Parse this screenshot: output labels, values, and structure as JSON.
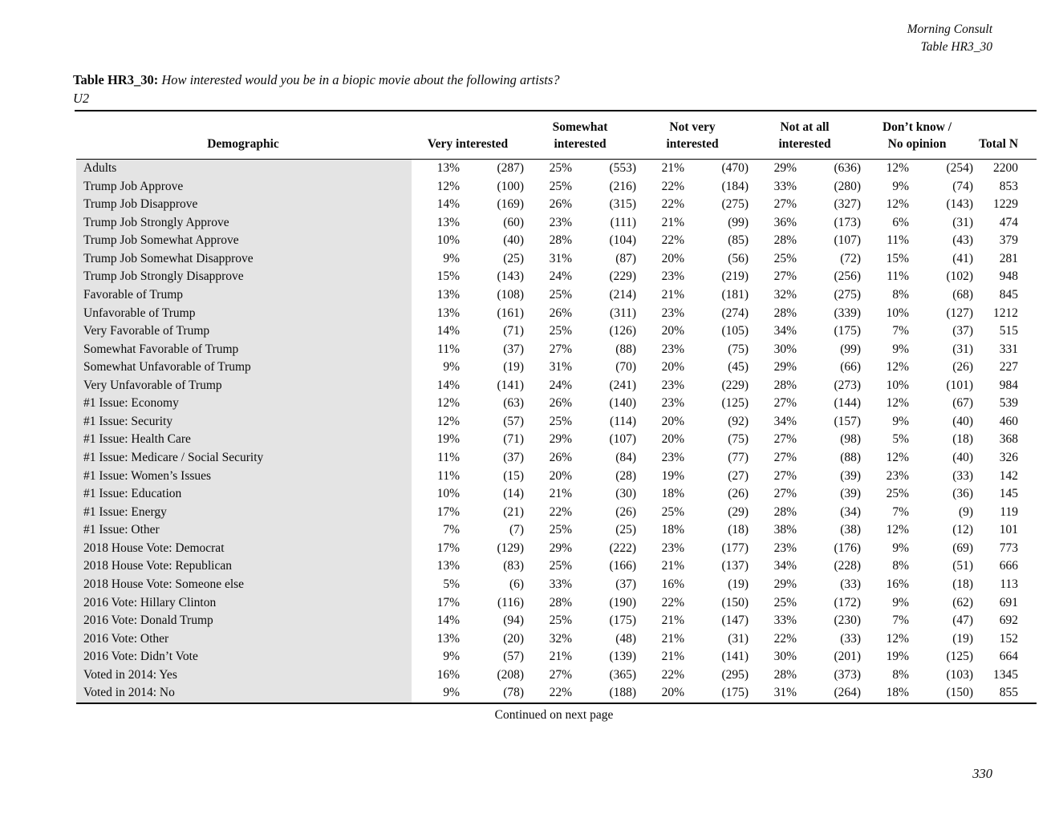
{
  "header": {
    "brand": "Morning Consult",
    "table_ref": "Table HR3_30"
  },
  "title": {
    "label": "Table HR3_30:",
    "question": "How interested would you be in a biopic movie about the following artists?",
    "subject": "U2"
  },
  "colors": {
    "demographic_shading": "#e4e4e4",
    "rule_color": "#000000",
    "text_color": "#0b0b0b",
    "page_background": "#ffffff"
  },
  "table": {
    "columns": [
      {
        "line1": "",
        "line2": "Demographic"
      },
      {
        "line1": "",
        "line2": "Very interested"
      },
      {
        "line1": "Somewhat",
        "line2": "interested"
      },
      {
        "line1": "Not very",
        "line2": "interested"
      },
      {
        "line1": "Not at all",
        "line2": "interested"
      },
      {
        "line1": "Don’t know /",
        "line2": "No opinion"
      },
      {
        "line1": "",
        "line2": "Total N"
      }
    ],
    "rows": [
      {
        "label": "Adults",
        "cells": [
          "13%",
          "(287)",
          "25%",
          "(553)",
          "21%",
          "(470)",
          "29%",
          "(636)",
          "12%",
          "(254)",
          "2200"
        ]
      },
      {
        "label": "Trump Job Approve",
        "cells": [
          "12%",
          "(100)",
          "25%",
          "(216)",
          "22%",
          "(184)",
          "33%",
          "(280)",
          "9%",
          "(74)",
          "853"
        ]
      },
      {
        "label": "Trump Job Disapprove",
        "cells": [
          "14%",
          "(169)",
          "26%",
          "(315)",
          "22%",
          "(275)",
          "27%",
          "(327)",
          "12%",
          "(143)",
          "1229"
        ]
      },
      {
        "label": "Trump Job Strongly Approve",
        "cells": [
          "13%",
          "(60)",
          "23%",
          "(111)",
          "21%",
          "(99)",
          "36%",
          "(173)",
          "6%",
          "(31)",
          "474"
        ]
      },
      {
        "label": "Trump Job Somewhat Approve",
        "cells": [
          "10%",
          "(40)",
          "28%",
          "(104)",
          "22%",
          "(85)",
          "28%",
          "(107)",
          "11%",
          "(43)",
          "379"
        ]
      },
      {
        "label": "Trump Job Somewhat Disapprove",
        "cells": [
          "9%",
          "(25)",
          "31%",
          "(87)",
          "20%",
          "(56)",
          "25%",
          "(72)",
          "15%",
          "(41)",
          "281"
        ]
      },
      {
        "label": "Trump Job Strongly Disapprove",
        "cells": [
          "15%",
          "(143)",
          "24%",
          "(229)",
          "23%",
          "(219)",
          "27%",
          "(256)",
          "11%",
          "(102)",
          "948"
        ]
      },
      {
        "label": "Favorable of Trump",
        "cells": [
          "13%",
          "(108)",
          "25%",
          "(214)",
          "21%",
          "(181)",
          "32%",
          "(275)",
          "8%",
          "(68)",
          "845"
        ]
      },
      {
        "label": "Unfavorable of Trump",
        "cells": [
          "13%",
          "(161)",
          "26%",
          "(311)",
          "23%",
          "(274)",
          "28%",
          "(339)",
          "10%",
          "(127)",
          "1212"
        ]
      },
      {
        "label": "Very Favorable of Trump",
        "cells": [
          "14%",
          "(71)",
          "25%",
          "(126)",
          "20%",
          "(105)",
          "34%",
          "(175)",
          "7%",
          "(37)",
          "515"
        ]
      },
      {
        "label": "Somewhat Favorable of Trump",
        "cells": [
          "11%",
          "(37)",
          "27%",
          "(88)",
          "23%",
          "(75)",
          "30%",
          "(99)",
          "9%",
          "(31)",
          "331"
        ]
      },
      {
        "label": "Somewhat Unfavorable of Trump",
        "cells": [
          "9%",
          "(19)",
          "31%",
          "(70)",
          "20%",
          "(45)",
          "29%",
          "(66)",
          "12%",
          "(26)",
          "227"
        ]
      },
      {
        "label": "Very Unfavorable of Trump",
        "cells": [
          "14%",
          "(141)",
          "24%",
          "(241)",
          "23%",
          "(229)",
          "28%",
          "(273)",
          "10%",
          "(101)",
          "984"
        ]
      },
      {
        "label": "#1 Issue: Economy",
        "cells": [
          "12%",
          "(63)",
          "26%",
          "(140)",
          "23%",
          "(125)",
          "27%",
          "(144)",
          "12%",
          "(67)",
          "539"
        ]
      },
      {
        "label": "#1 Issue: Security",
        "cells": [
          "12%",
          "(57)",
          "25%",
          "(114)",
          "20%",
          "(92)",
          "34%",
          "(157)",
          "9%",
          "(40)",
          "460"
        ]
      },
      {
        "label": "#1 Issue: Health Care",
        "cells": [
          "19%",
          "(71)",
          "29%",
          "(107)",
          "20%",
          "(75)",
          "27%",
          "(98)",
          "5%",
          "(18)",
          "368"
        ]
      },
      {
        "label": "#1 Issue: Medicare / Social Security",
        "cells": [
          "11%",
          "(37)",
          "26%",
          "(84)",
          "23%",
          "(77)",
          "27%",
          "(88)",
          "12%",
          "(40)",
          "326"
        ]
      },
      {
        "label": "#1 Issue: Women’s Issues",
        "cells": [
          "11%",
          "(15)",
          "20%",
          "(28)",
          "19%",
          "(27)",
          "27%",
          "(39)",
          "23%",
          "(33)",
          "142"
        ]
      },
      {
        "label": "#1 Issue: Education",
        "cells": [
          "10%",
          "(14)",
          "21%",
          "(30)",
          "18%",
          "(26)",
          "27%",
          "(39)",
          "25%",
          "(36)",
          "145"
        ]
      },
      {
        "label": "#1 Issue: Energy",
        "cells": [
          "17%",
          "(21)",
          "22%",
          "(26)",
          "25%",
          "(29)",
          "28%",
          "(34)",
          "7%",
          "(9)",
          "119"
        ]
      },
      {
        "label": "#1 Issue: Other",
        "cells": [
          "7%",
          "(7)",
          "25%",
          "(25)",
          "18%",
          "(18)",
          "38%",
          "(38)",
          "12%",
          "(12)",
          "101"
        ]
      },
      {
        "label": "2018 House Vote: Democrat",
        "cells": [
          "17%",
          "(129)",
          "29%",
          "(222)",
          "23%",
          "(177)",
          "23%",
          "(176)",
          "9%",
          "(69)",
          "773"
        ]
      },
      {
        "label": "2018 House Vote: Republican",
        "cells": [
          "13%",
          "(83)",
          "25%",
          "(166)",
          "21%",
          "(137)",
          "34%",
          "(228)",
          "8%",
          "(51)",
          "666"
        ]
      },
      {
        "label": "2018 House Vote: Someone else",
        "cells": [
          "5%",
          "(6)",
          "33%",
          "(37)",
          "16%",
          "(19)",
          "29%",
          "(33)",
          "16%",
          "(18)",
          "113"
        ]
      },
      {
        "label": "2016 Vote: Hillary Clinton",
        "cells": [
          "17%",
          "(116)",
          "28%",
          "(190)",
          "22%",
          "(150)",
          "25%",
          "(172)",
          "9%",
          "(62)",
          "691"
        ]
      },
      {
        "label": "2016 Vote: Donald Trump",
        "cells": [
          "14%",
          "(94)",
          "25%",
          "(175)",
          "21%",
          "(147)",
          "33%",
          "(230)",
          "7%",
          "(47)",
          "692"
        ]
      },
      {
        "label": "2016 Vote: Other",
        "cells": [
          "13%",
          "(20)",
          "32%",
          "(48)",
          "21%",
          "(31)",
          "22%",
          "(33)",
          "12%",
          "(19)",
          "152"
        ]
      },
      {
        "label": "2016 Vote: Didn’t Vote",
        "cells": [
          "9%",
          "(57)",
          "21%",
          "(139)",
          "21%",
          "(141)",
          "30%",
          "(201)",
          "19%",
          "(125)",
          "664"
        ]
      },
      {
        "label": "Voted in 2014: Yes",
        "cells": [
          "16%",
          "(208)",
          "27%",
          "(365)",
          "22%",
          "(295)",
          "28%",
          "(373)",
          "8%",
          "(103)",
          "1345"
        ]
      },
      {
        "label": "Voted in 2014: No",
        "cells": [
          "9%",
          "(78)",
          "22%",
          "(188)",
          "20%",
          "(175)",
          "31%",
          "(264)",
          "18%",
          "(150)",
          "855"
        ]
      }
    ]
  },
  "footer": {
    "continued": "Continued on next page",
    "page_number": "330"
  }
}
